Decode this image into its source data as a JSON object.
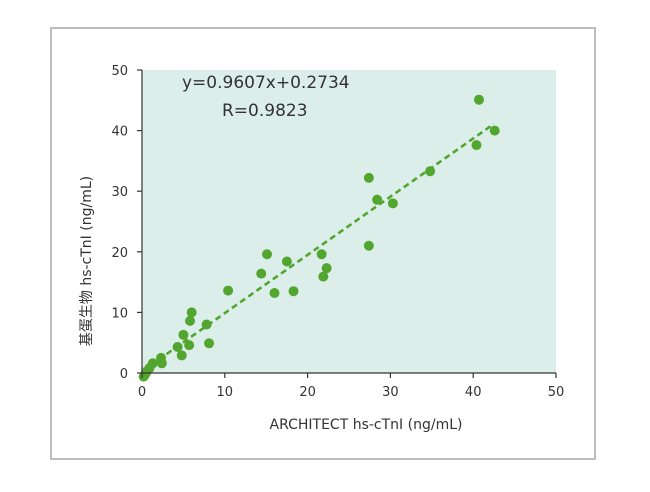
{
  "chart_data": {
    "type": "scatter",
    "xlabel": "ARCHITECT hs-cTnI (ng/mL)",
    "ylabel": "基蛋生物 hs-cTnI (ng/mL)",
    "xlim": [
      0,
      50
    ],
    "ylim": [
      0,
      50
    ],
    "x_ticks": [
      0,
      10,
      20,
      30,
      40,
      50
    ],
    "y_ticks": [
      0,
      10,
      20,
      30,
      40,
      50
    ],
    "grid": false,
    "annotations": [
      "y=0.9607x+0.2734",
      "R=0.9823"
    ],
    "regression": {
      "slope": 0.9607,
      "intercept": 0.2734,
      "x_range": [
        0,
        42.5
      ],
      "style": "dashed"
    },
    "colors": {
      "points": "#52a52e",
      "plot_background": "#dceee9",
      "frame": "#bdbdbd"
    },
    "points": [
      {
        "x": 0.2,
        "y": -0.6
      },
      {
        "x": 0.4,
        "y": -0.2
      },
      {
        "x": 0.6,
        "y": 0.3
      },
      {
        "x": 0.9,
        "y": 0.8
      },
      {
        "x": 1.3,
        "y": 1.6
      },
      {
        "x": 2.3,
        "y": 2.5
      },
      {
        "x": 2.4,
        "y": 1.6
      },
      {
        "x": 4.3,
        "y": 4.3
      },
      {
        "x": 4.8,
        "y": 2.9
      },
      {
        "x": 5.0,
        "y": 6.3
      },
      {
        "x": 5.7,
        "y": 4.6
      },
      {
        "x": 5.8,
        "y": 8.6
      },
      {
        "x": 6.0,
        "y": 10.0
      },
      {
        "x": 7.8,
        "y": 8.0
      },
      {
        "x": 8.1,
        "y": 4.9
      },
      {
        "x": 10.4,
        "y": 13.6
      },
      {
        "x": 14.4,
        "y": 16.4
      },
      {
        "x": 15.1,
        "y": 19.6
      },
      {
        "x": 16.0,
        "y": 13.2
      },
      {
        "x": 17.5,
        "y": 18.4
      },
      {
        "x": 18.3,
        "y": 13.5
      },
      {
        "x": 21.7,
        "y": 19.6
      },
      {
        "x": 21.9,
        "y": 15.9
      },
      {
        "x": 22.3,
        "y": 17.3
      },
      {
        "x": 27.4,
        "y": 32.2
      },
      {
        "x": 27.4,
        "y": 21.0
      },
      {
        "x": 28.4,
        "y": 28.6
      },
      {
        "x": 30.3,
        "y": 28.0
      },
      {
        "x": 34.8,
        "y": 33.3
      },
      {
        "x": 40.4,
        "y": 37.6
      },
      {
        "x": 40.7,
        "y": 45.1
      },
      {
        "x": 42.6,
        "y": 40.0
      }
    ]
  }
}
